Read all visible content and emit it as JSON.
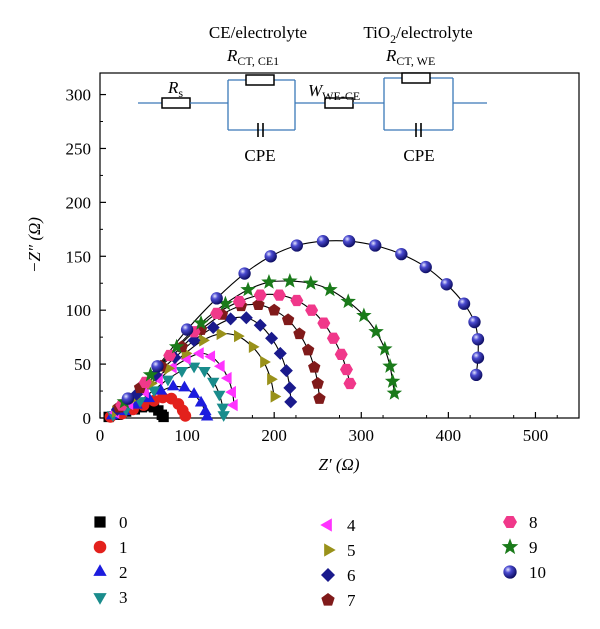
{
  "chart_data": {
    "type": "scatter",
    "xlabel": "Z′ (Ω)",
    "ylabel": "−Z″ (Ω)",
    "xlim": [
      0,
      550
    ],
    "ylim": [
      0,
      320
    ],
    "x_ticks": [
      0,
      100,
      200,
      300,
      400,
      500
    ],
    "y_ticks": [
      0,
      50,
      100,
      150,
      200,
      250,
      300
    ],
    "grid": false,
    "legend": "bottom",
    "series": [
      {
        "name": "0",
        "color": "#000000",
        "marker": "square",
        "points": [
          [
            10,
            1
          ],
          [
            20,
            3
          ],
          [
            30,
            6
          ],
          [
            40,
            8
          ],
          [
            48,
            10
          ],
          [
            55,
            11
          ],
          [
            62,
            10
          ],
          [
            67,
            7
          ],
          [
            71,
            3
          ],
          [
            73,
            1
          ]
        ]
      },
      {
        "name": "1",
        "color": "#e3211c",
        "marker": "circle",
        "points": [
          [
            12,
            1
          ],
          [
            25,
            4
          ],
          [
            38,
            8
          ],
          [
            50,
            12
          ],
          [
            62,
            16
          ],
          [
            72,
            19
          ],
          [
            82,
            18
          ],
          [
            90,
            13
          ],
          [
            95,
            7
          ],
          [
            98,
            2
          ]
        ]
      },
      {
        "name": "2",
        "color": "#1c1cde",
        "marker": "triangle-up",
        "points": [
          [
            14,
            2
          ],
          [
            28,
            6
          ],
          [
            42,
            12
          ],
          [
            56,
            18
          ],
          [
            70,
            25
          ],
          [
            84,
            29
          ],
          [
            97,
            28
          ],
          [
            108,
            22
          ],
          [
            116,
            14
          ],
          [
            121,
            6
          ],
          [
            123,
            1
          ]
        ]
      },
      {
        "name": "3",
        "color": "#1a8c8c",
        "marker": "triangle-down",
        "points": [
          [
            15,
            3
          ],
          [
            30,
            8
          ],
          [
            46,
            16
          ],
          [
            62,
            26
          ],
          [
            78,
            36
          ],
          [
            94,
            44
          ],
          [
            108,
            48
          ],
          [
            120,
            44
          ],
          [
            130,
            34
          ],
          [
            137,
            22
          ],
          [
            141,
            10
          ],
          [
            142,
            3
          ]
        ]
      },
      {
        "name": "4",
        "color": "#ff33ff",
        "marker": "triangle-left",
        "points": [
          [
            18,
            5
          ],
          [
            34,
            13
          ],
          [
            52,
            24
          ],
          [
            68,
            36
          ],
          [
            84,
            47
          ],
          [
            100,
            55
          ],
          [
            115,
            60
          ],
          [
            128,
            57
          ],
          [
            139,
            48
          ],
          [
            147,
            37
          ],
          [
            152,
            24
          ],
          [
            154,
            12
          ]
        ]
      },
      {
        "name": "5",
        "color": "#99911a",
        "marker": "triangle-right",
        "points": [
          [
            18,
            6
          ],
          [
            38,
            18
          ],
          [
            58,
            32
          ],
          [
            78,
            46
          ],
          [
            98,
            60
          ],
          [
            118,
            72
          ],
          [
            138,
            78
          ],
          [
            158,
            76
          ],
          [
            175,
            66
          ],
          [
            188,
            52
          ],
          [
            196,
            36
          ],
          [
            200,
            20
          ]
        ]
      },
      {
        "name": "6",
        "color": "#1a1a8c",
        "marker": "diamond",
        "points": [
          [
            20,
            8
          ],
          [
            42,
            22
          ],
          [
            64,
            40
          ],
          [
            86,
            56
          ],
          [
            108,
            72
          ],
          [
            130,
            84
          ],
          [
            150,
            92
          ],
          [
            168,
            93
          ],
          [
            184,
            86
          ],
          [
            197,
            74
          ],
          [
            207,
            60
          ],
          [
            214,
            44
          ],
          [
            218,
            28
          ],
          [
            219,
            15
          ]
        ]
      },
      {
        "name": "7",
        "color": "#801a1a",
        "marker": "pentagon",
        "points": [
          [
            22,
            10
          ],
          [
            46,
            28
          ],
          [
            70,
            48
          ],
          [
            94,
            66
          ],
          [
            116,
            82
          ],
          [
            140,
            96
          ],
          [
            162,
            104
          ],
          [
            182,
            105
          ],
          [
            200,
            100
          ],
          [
            216,
            91
          ],
          [
            229,
            78
          ],
          [
            239,
            63
          ],
          [
            246,
            47
          ],
          [
            250,
            32
          ],
          [
            252,
            18
          ]
        ]
      },
      {
        "name": "8",
        "color": "#f0388a",
        "marker": "hexagon",
        "points": [
          [
            25,
            12
          ],
          [
            52,
            33
          ],
          [
            80,
            58
          ],
          [
            108,
            80
          ],
          [
            134,
            97
          ],
          [
            160,
            108
          ],
          [
            184,
            114
          ],
          [
            206,
            114
          ],
          [
            226,
            109
          ],
          [
            243,
            100
          ],
          [
            257,
            88
          ],
          [
            268,
            74
          ],
          [
            277,
            59
          ],
          [
            283,
            45
          ],
          [
            287,
            32
          ]
        ]
      },
      {
        "name": "9",
        "color": "#1a7a1a",
        "marker": "star",
        "points": [
          [
            28,
            15
          ],
          [
            58,
            40
          ],
          [
            88,
            66
          ],
          [
            116,
            88
          ],
          [
            144,
            106
          ],
          [
            170,
            119
          ],
          [
            194,
            126
          ],
          [
            218,
            127
          ],
          [
            242,
            125
          ],
          [
            264,
            119
          ],
          [
            285,
            108
          ],
          [
            303,
            95
          ],
          [
            317,
            80
          ],
          [
            327,
            64
          ],
          [
            333,
            48
          ],
          [
            336,
            34
          ],
          [
            338,
            23
          ]
        ]
      },
      {
        "name": "10",
        "color": "#14148c",
        "marker": "sphere",
        "points": [
          [
            32,
            18
          ],
          [
            66,
            48
          ],
          [
            100,
            82
          ],
          [
            134,
            111
          ],
          [
            166,
            134
          ],
          [
            196,
            150
          ],
          [
            226,
            160
          ],
          [
            256,
            164
          ],
          [
            286,
            164
          ],
          [
            316,
            160
          ],
          [
            346,
            152
          ],
          [
            374,
            140
          ],
          [
            398,
            124
          ],
          [
            418,
            106
          ],
          [
            430,
            89
          ],
          [
            434,
            73
          ],
          [
            434,
            56
          ],
          [
            432,
            40
          ]
        ]
      }
    ]
  },
  "circuit": {
    "label_ce": "CE/electrolyte",
    "label_tio2": "TiO",
    "label_tio2_sub": "2",
    "label_tio2_rest": "/electrolyte",
    "rs_main": "R",
    "rs_sub": "s",
    "rct_ce_main": "R",
    "rct_ce_sub": "CT, CE1",
    "w_main": "W",
    "w_sub": "WE-CE",
    "rct_we_main": "R",
    "rct_we_sub": "CT, WE",
    "cpe1": "CPE",
    "cpe2": "CPE"
  }
}
